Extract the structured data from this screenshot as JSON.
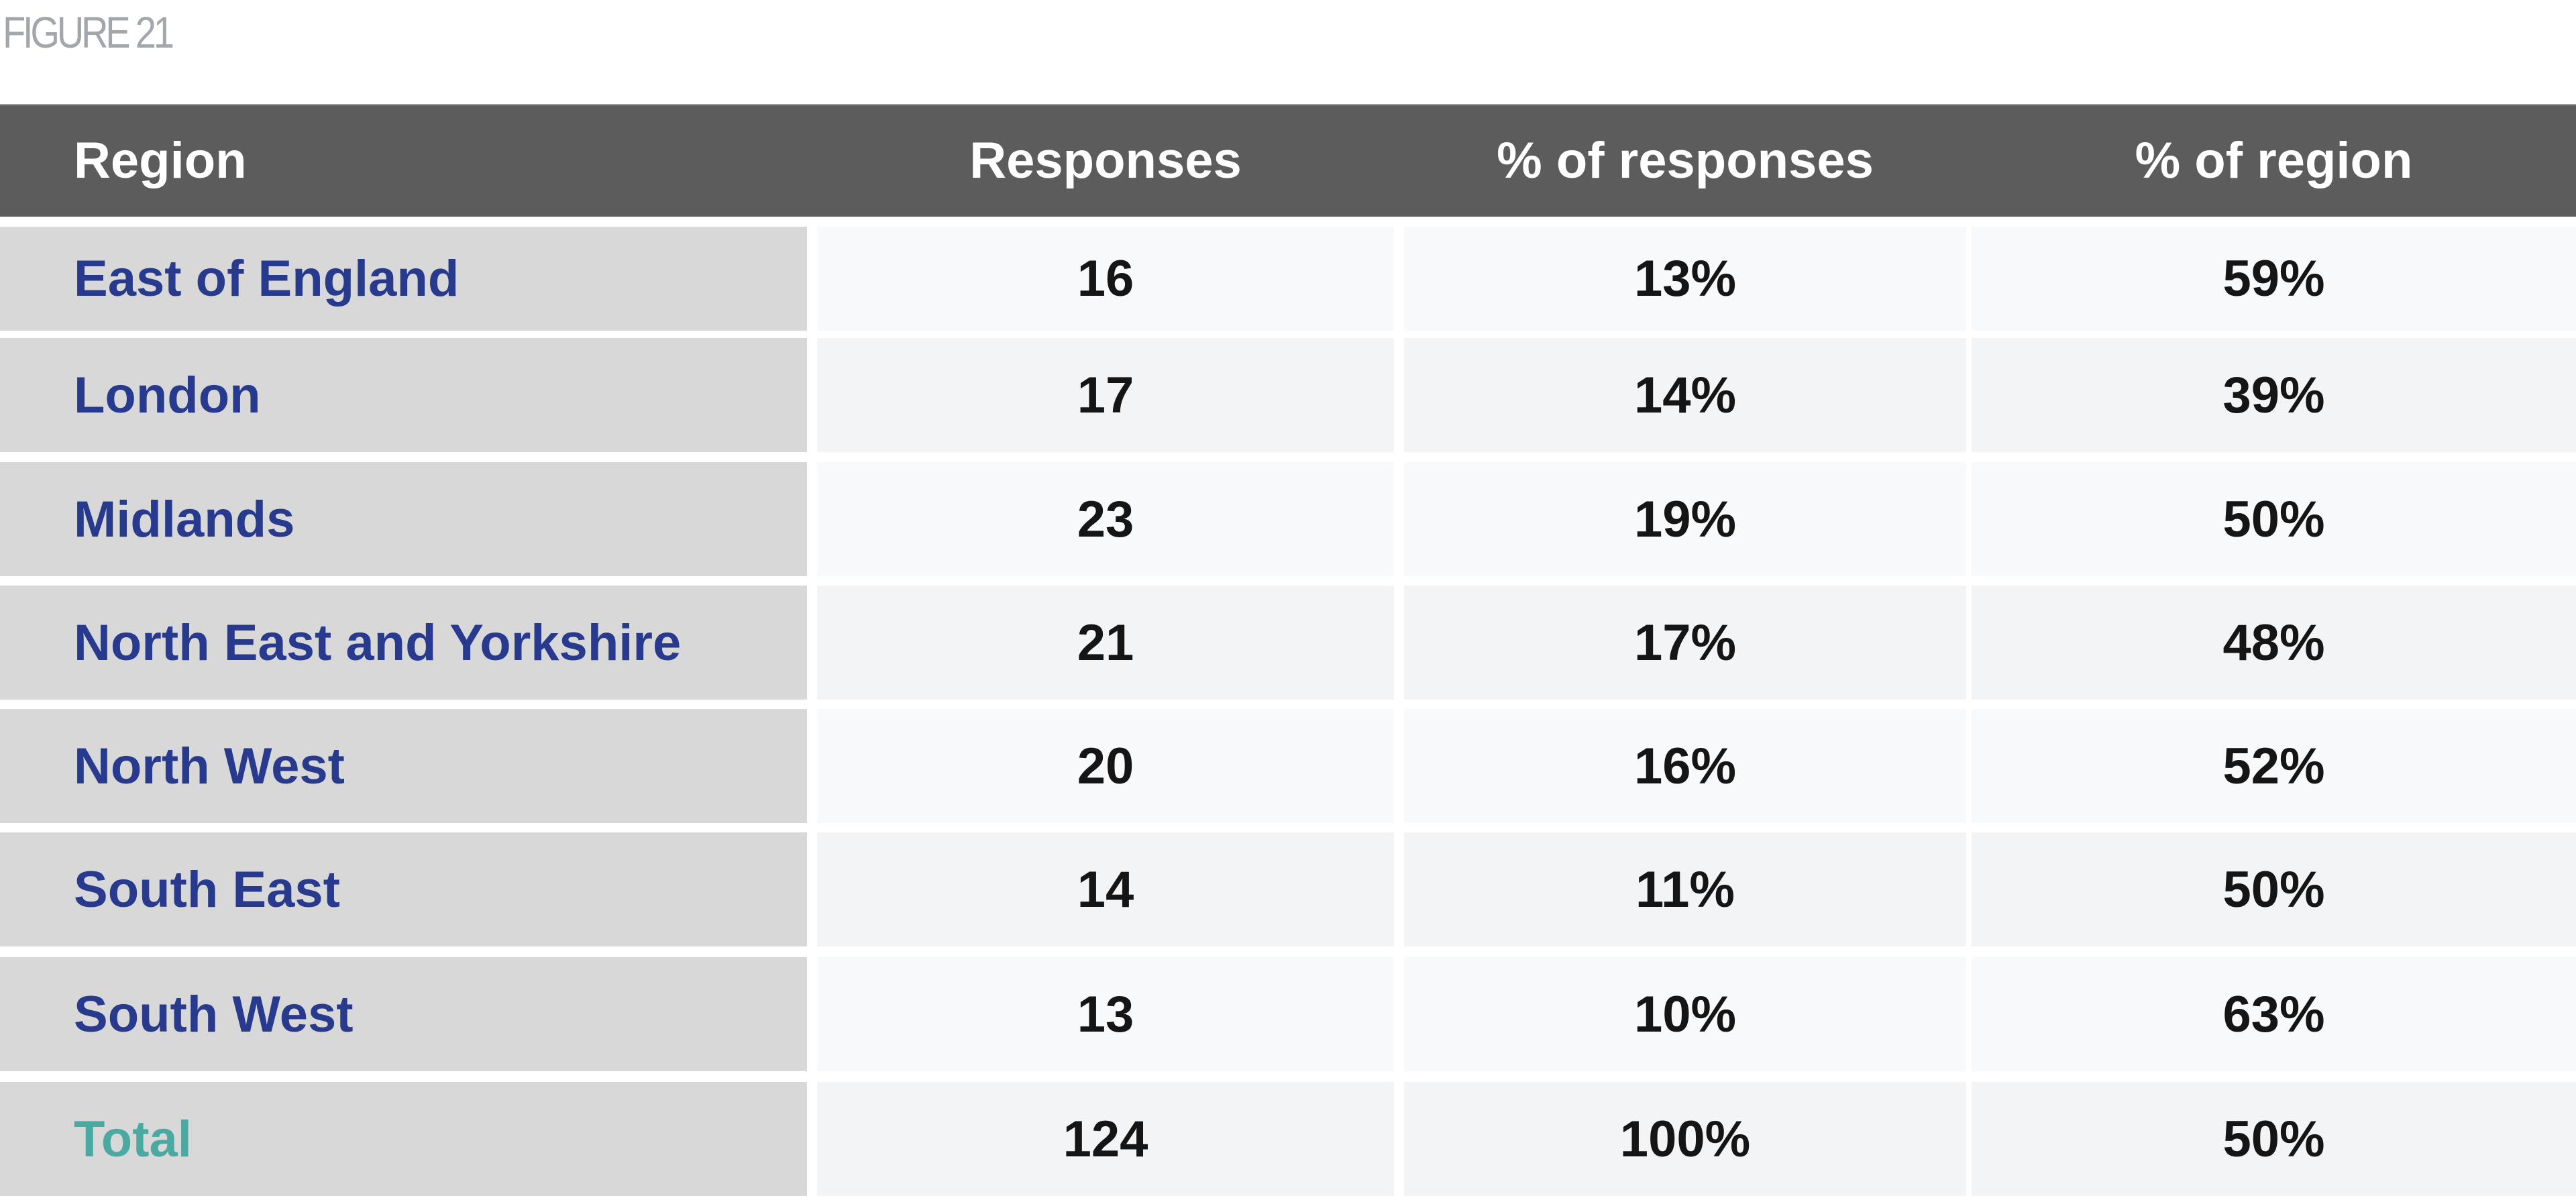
{
  "figure_label": "FIGURE 21",
  "table": {
    "headers": [
      "Region",
      "Responses",
      "% of responses",
      "% of region"
    ],
    "rows": [
      [
        "East of England",
        "16",
        "13%",
        "59%"
      ],
      [
        "London",
        "17",
        "14%",
        "39%"
      ],
      [
        "Midlands",
        "23",
        "19%",
        "50%"
      ],
      [
        "North East and Yorkshire",
        "21",
        "17%",
        "48%"
      ],
      [
        "North West",
        "20",
        "16%",
        "52%"
      ],
      [
        "South East",
        "14",
        "11%",
        "50%"
      ],
      [
        "South West",
        "13",
        "10%",
        "63%"
      ],
      [
        "Total",
        "124",
        "100%",
        "50%"
      ]
    ]
  },
  "colors": {
    "header_bg": "#5b5c5b",
    "region_text": "#283a8e",
    "total_text": "#4aa9a0",
    "region_cell_bg": "#d8d8d8"
  }
}
